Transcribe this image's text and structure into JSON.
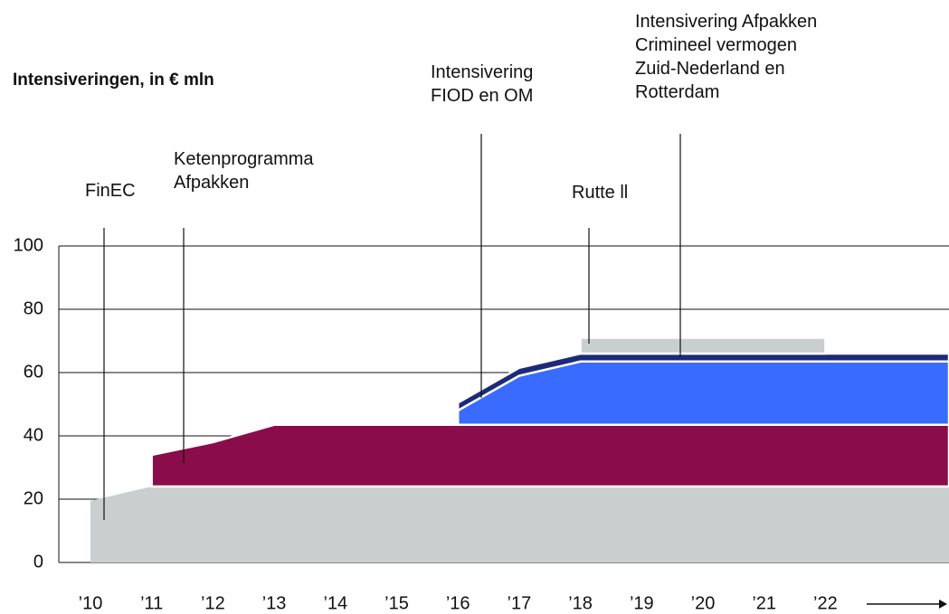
{
  "chart_data": {
    "type": "stacked_area",
    "title": "Intensiveringen, in € mln",
    "categories": [
      "’10",
      "’11",
      "’12",
      "’13",
      "’14",
      "’15",
      "’16",
      "’17",
      "’18",
      "’19",
      "’20",
      "’21",
      "’22"
    ],
    "series": [
      {
        "name": "FinEC",
        "color": "#c9cfcf",
        "values": [
          19.5,
          24,
          24,
          24,
          24,
          24,
          24,
          24,
          24,
          24,
          24,
          24,
          24
        ]
      },
      {
        "name": "Ketenprogramma\nAfpakken",
        "color": "#8a0c4a",
        "values": [
          null,
          10,
          14,
          19.5,
          19.5,
          19.5,
          19.5,
          19.5,
          19.5,
          19.5,
          19.5,
          19.5,
          19.5
        ]
      },
      {
        "name": "Intensivering\nFIOD en OM",
        "color": "#3a6bff",
        "values": [
          null,
          null,
          null,
          null,
          null,
          null,
          4.5,
          15.5,
          20,
          20,
          20,
          20,
          20
        ]
      },
      {
        "name": "Intensivering Afpakken\nCrimineel  vermogen\nZuid-Nederland en\nRotterdam",
        "color": "#1c2b78",
        "values": [
          null,
          null,
          null,
          null,
          null,
          null,
          2.5,
          2.5,
          2.5,
          2.5,
          2.5,
          2.5,
          2.5
        ]
      },
      {
        "name": "Rutte ll",
        "color": "#c9cfcf",
        "values": [
          null,
          null,
          null,
          null,
          null,
          null,
          null,
          null,
          5,
          5,
          5,
          5,
          5
        ]
      }
    ],
    "ylim": [
      0,
      100
    ],
    "yticks": [
      0,
      20,
      40,
      60,
      80,
      100
    ],
    "grid": true
  }
}
